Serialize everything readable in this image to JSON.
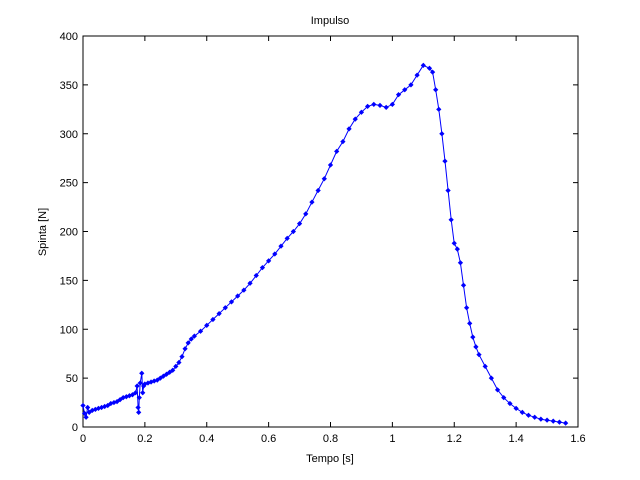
{
  "chart_data": {
    "type": "line",
    "title": "Impulso",
    "xlabel": "Tempo [s]",
    "ylabel": "Spinta [N]",
    "xlim": [
      0,
      1.6
    ],
    "ylim": [
      0,
      400
    ],
    "xticks": [
      0,
      0.2,
      0.4,
      0.6,
      0.8,
      1,
      1.2,
      1.4,
      1.6
    ],
    "yticks": [
      0,
      50,
      100,
      150,
      200,
      250,
      300,
      350,
      400
    ],
    "grid": false,
    "legend": "none",
    "marker": "diamond",
    "line_color": "#0000ff",
    "series": [
      {
        "x": [
          0.0,
          0.005,
          0.01,
          0.015,
          0.02,
          0.03,
          0.04,
          0.05,
          0.06,
          0.07,
          0.08,
          0.09,
          0.1,
          0.11,
          0.12,
          0.13,
          0.14,
          0.15,
          0.16,
          0.17,
          0.175,
          0.178,
          0.18,
          0.182,
          0.185,
          0.19,
          0.193,
          0.196,
          0.2,
          0.21,
          0.22,
          0.23,
          0.24,
          0.25,
          0.26,
          0.27,
          0.28,
          0.29,
          0.3,
          0.31,
          0.32,
          0.33,
          0.34,
          0.35,
          0.36,
          0.38,
          0.4,
          0.42,
          0.44,
          0.46,
          0.48,
          0.5,
          0.52,
          0.54,
          0.56,
          0.58,
          0.6,
          0.62,
          0.64,
          0.66,
          0.68,
          0.7,
          0.72,
          0.74,
          0.76,
          0.78,
          0.8,
          0.82,
          0.84,
          0.86,
          0.88,
          0.9,
          0.92,
          0.94,
          0.96,
          0.98,
          1.0,
          1.02,
          1.04,
          1.06,
          1.08,
          1.1,
          1.12,
          1.13,
          1.14,
          1.15,
          1.16,
          1.17,
          1.18,
          1.19,
          1.2,
          1.21,
          1.22,
          1.23,
          1.24,
          1.25,
          1.26,
          1.27,
          1.28,
          1.3,
          1.32,
          1.34,
          1.36,
          1.38,
          1.4,
          1.42,
          1.44,
          1.46,
          1.48,
          1.5,
          1.52,
          1.54,
          1.56
        ],
        "y": [
          22,
          14,
          10,
          20,
          15,
          17,
          18,
          19,
          20,
          21,
          22,
          24,
          25,
          26,
          28,
          30,
          31,
          32,
          33,
          35,
          42,
          20,
          15,
          30,
          45,
          55,
          35,
          42,
          44,
          45,
          46,
          47,
          48,
          50,
          52,
          54,
          56,
          58,
          62,
          66,
          72,
          80,
          86,
          90,
          93,
          98,
          104,
          110,
          116,
          122,
          128,
          134,
          140,
          147,
          155,
          163,
          170,
          177,
          185,
          193,
          200,
          208,
          218,
          230,
          242,
          254,
          268,
          282,
          292,
          305,
          315,
          322,
          328,
          330,
          329,
          327,
          330,
          340,
          345,
          350,
          360,
          370,
          367,
          363,
          345,
          325,
          300,
          272,
          242,
          212,
          188,
          182,
          168,
          145,
          122,
          106,
          92,
          82,
          74,
          62,
          50,
          38,
          30,
          24,
          19,
          15,
          12,
          10,
          8,
          7,
          6,
          5,
          4
        ]
      }
    ]
  }
}
